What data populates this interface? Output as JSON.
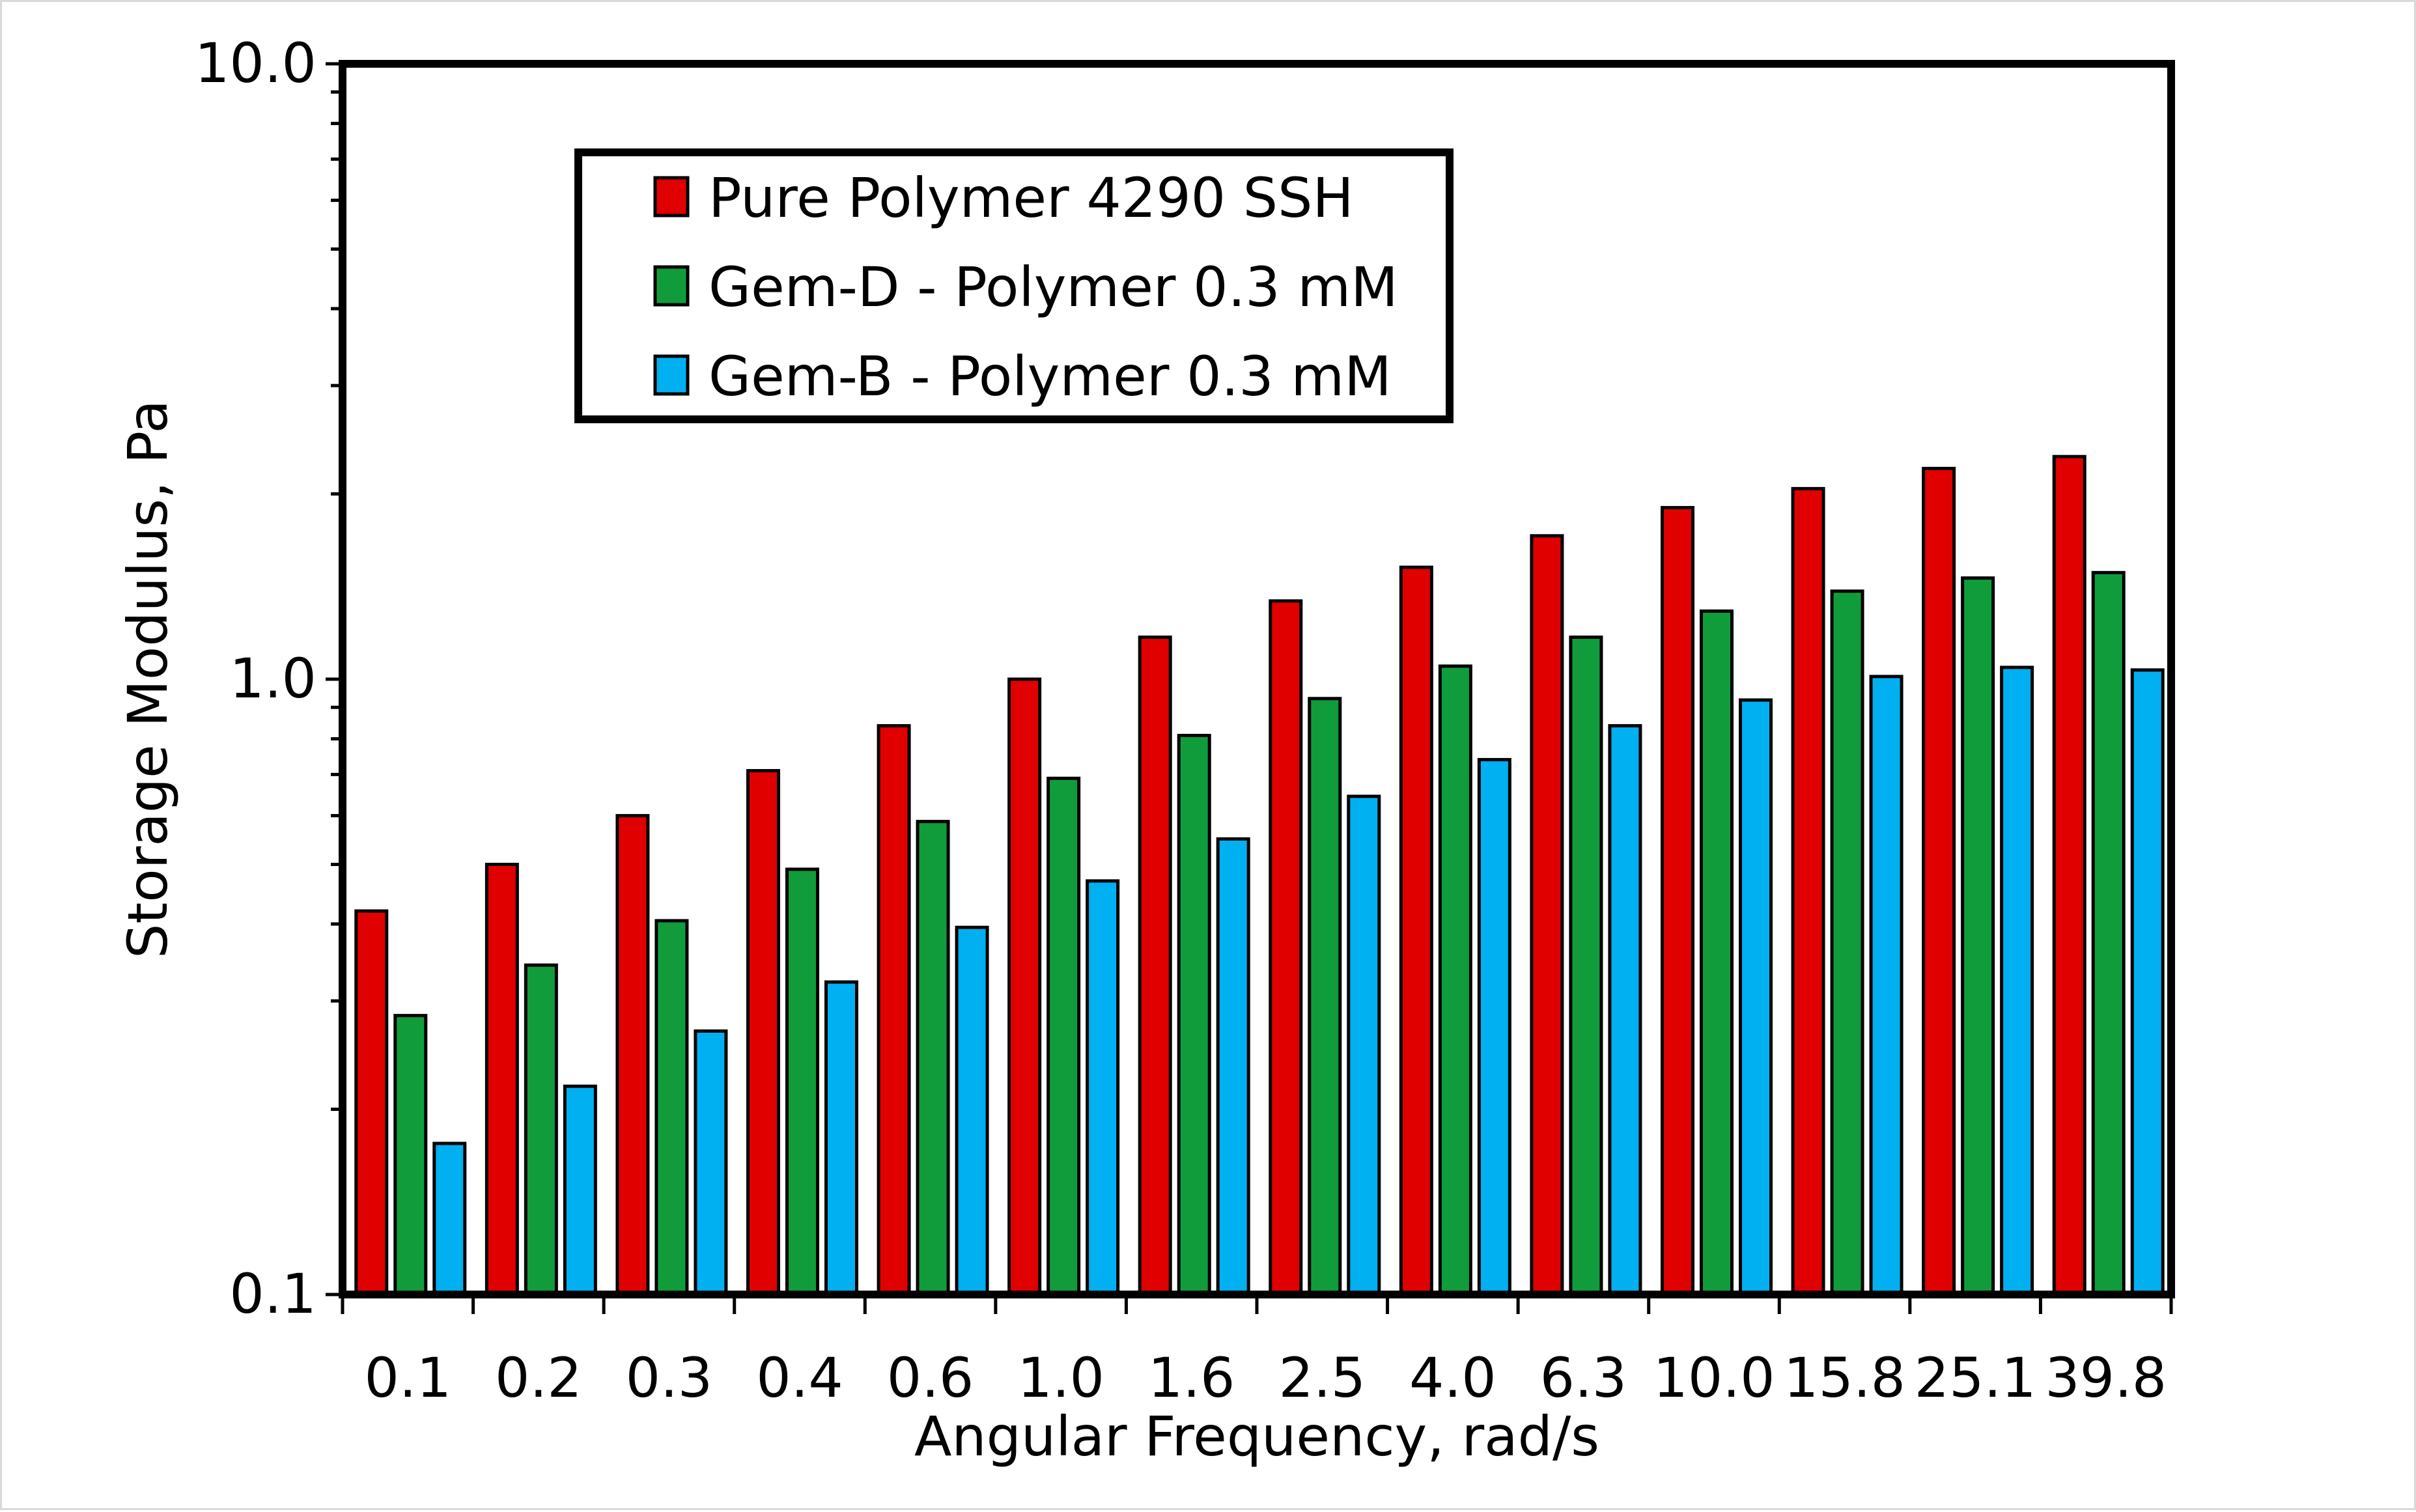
{
  "chart_data": {
    "type": "bar",
    "yscale": "log",
    "title": "",
    "xlabel": "Angular Frequency, rad/s",
    "ylabel": "Storage Modulus, Pa",
    "ylim": [
      0.1,
      10
    ],
    "ytick_labels": [
      "0.1",
      "1.0",
      "10.0"
    ],
    "ytick_values": [
      0.1,
      1,
      10
    ],
    "categories": [
      "0.1",
      "0.2",
      "0.3",
      "0.4",
      "0.6",
      "1.0",
      "1.6",
      "2.5",
      "4.0",
      "6.3",
      "10.0",
      "15.8",
      "25.1",
      "39.8"
    ],
    "legend_position": "top-left",
    "series": [
      {
        "name": "Pure Polymer 4290 SSH",
        "color": "#e00000",
        "values": [
          0.42,
          0.5,
          0.6,
          0.71,
          0.84,
          1.0,
          1.17,
          1.34,
          1.52,
          1.71,
          1.9,
          2.04,
          2.2,
          2.3
        ]
      },
      {
        "name": "Gem-D - Polymer 0.3 mM",
        "color": "#119c3c",
        "values": [
          0.284,
          0.343,
          0.405,
          0.491,
          0.587,
          0.69,
          0.81,
          0.93,
          1.05,
          1.17,
          1.29,
          1.39,
          1.46,
          1.49
        ]
      },
      {
        "name": "Gem-B - Polymer 0.3 mM",
        "color": "#00b0f0",
        "values": [
          0.176,
          0.218,
          0.268,
          0.322,
          0.395,
          0.47,
          0.55,
          0.645,
          0.74,
          0.84,
          0.925,
          1.01,
          1.045,
          1.035
        ]
      }
    ]
  }
}
